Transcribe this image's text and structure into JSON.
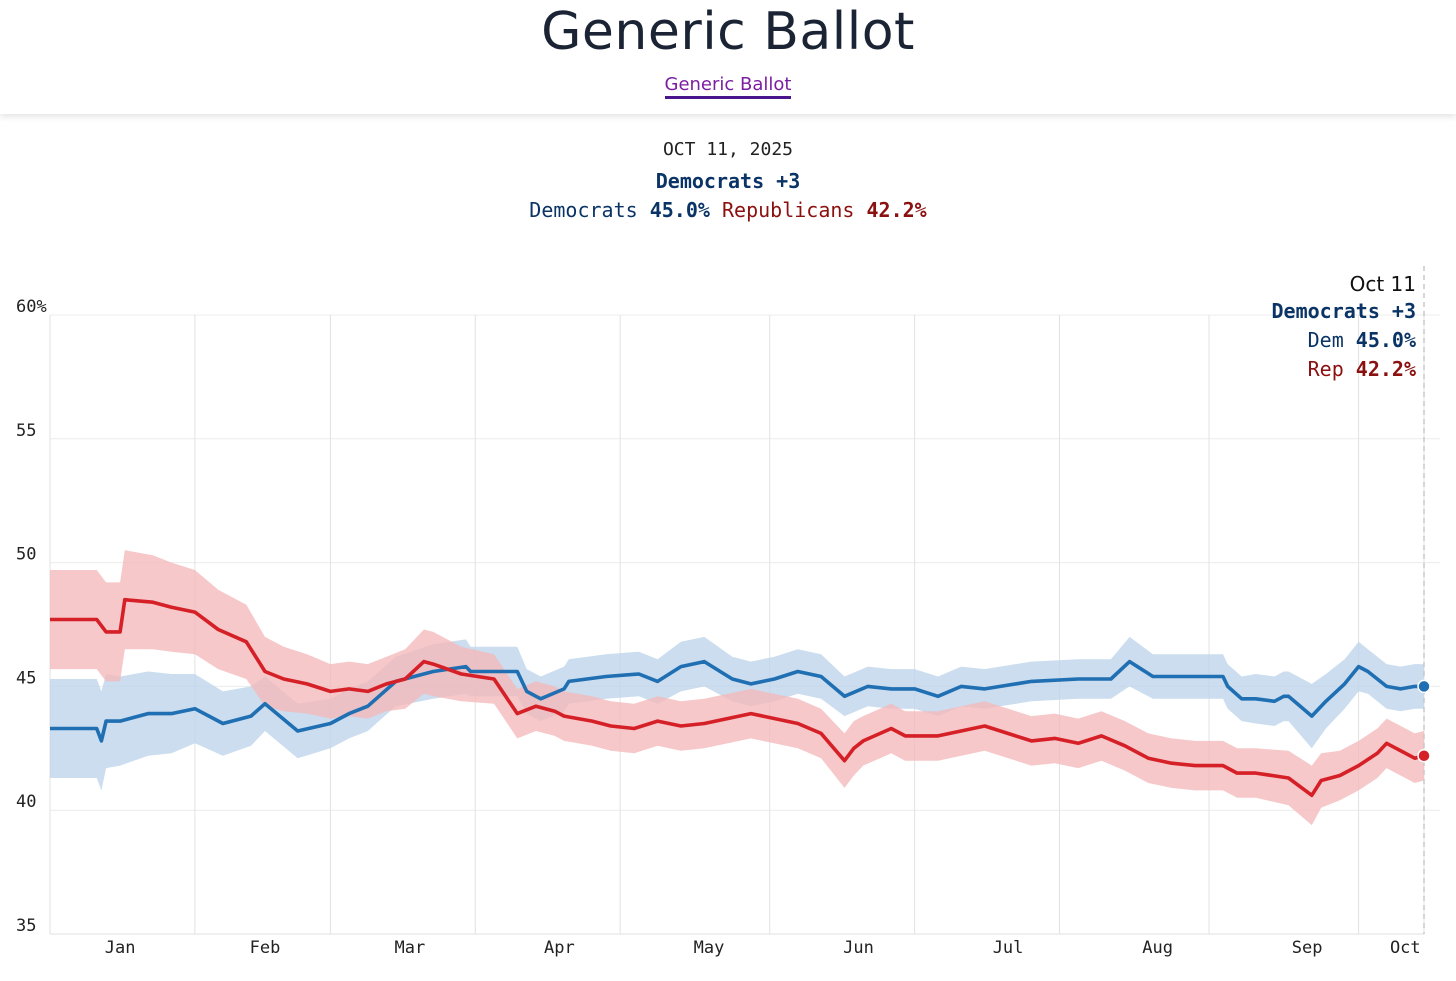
{
  "header": {
    "title": "Generic Ballot",
    "link": "Generic Ballot"
  },
  "summary": {
    "date": "OCT 11, 2025",
    "lead": "Democrats +3",
    "dem_label": "Democrats",
    "dem_value": "45.0%",
    "rep_label": "Republicans",
    "rep_value": "42.2%"
  },
  "tooltip": {
    "date": "Oct 11",
    "lead": "Democrats +3",
    "dem_label": "Dem",
    "dem_value": "45.0%",
    "rep_label": "Rep",
    "rep_value": "42.2%"
  },
  "colors": {
    "dem": "#1f6fb2",
    "dem_band": "#bcd4ea",
    "rep": "#d62027",
    "rep_band": "#f4b9ba",
    "dem_text": "#0b3466",
    "rep_text": "#8b1010"
  },
  "chart_data": {
    "type": "line",
    "title": "Generic Ballot",
    "x_unit": "days since Dec 21, 2024",
    "xlim": [
      0,
      294
    ],
    "ylim": [
      35,
      60
    ],
    "y_ticks": [
      35,
      40,
      45,
      50,
      55,
      60
    ],
    "y_tick_labels": [
      "35",
      "40",
      "45",
      "50",
      "55",
      "60%"
    ],
    "month_ticks": [
      {
        "label": "Jan",
        "x": 15
      },
      {
        "label": "Feb",
        "x": 46
      },
      {
        "label": "Mar",
        "x": 77
      },
      {
        "label": "Apr",
        "x": 109
      },
      {
        "label": "May",
        "x": 141
      },
      {
        "label": "Jun",
        "x": 173
      },
      {
        "label": "Jul",
        "x": 205
      },
      {
        "label": "Aug",
        "x": 237
      },
      {
        "label": "Sep",
        "x": 269
      },
      {
        "label": "Oct",
        "x": 290
      }
    ],
    "grid_x": [
      0,
      31,
      60,
      91,
      122,
      154,
      185,
      216,
      248,
      280,
      294
    ],
    "series": [
      {
        "name": "Democrats",
        "x": [
          0,
          10,
          11,
          12,
          15,
          21,
          26,
          31,
          37,
          43,
          46,
          53,
          60,
          64,
          68,
          74,
          82,
          89,
          90,
          95,
          100,
          102,
          105,
          110,
          111,
          119,
          126,
          130,
          135,
          140,
          146,
          150,
          155,
          160,
          165,
          170,
          175,
          180,
          185,
          190,
          195,
          200,
          210,
          220,
          227,
          231,
          236,
          241,
          247,
          251,
          252,
          255,
          258,
          262,
          264,
          265,
          270,
          273,
          277,
          280,
          282,
          286,
          289,
          292,
          294
        ],
        "y": [
          43.3,
          43.3,
          42.8,
          43.6,
          43.6,
          43.9,
          43.9,
          44.1,
          43.5,
          43.8,
          44.3,
          43.2,
          43.5,
          43.9,
          44.2,
          45.2,
          45.6,
          45.8,
          45.6,
          45.6,
          45.6,
          44.8,
          44.5,
          44.9,
          45.2,
          45.4,
          45.5,
          45.2,
          45.8,
          46.0,
          45.3,
          45.1,
          45.3,
          45.6,
          45.4,
          44.6,
          45.0,
          44.9,
          44.9,
          44.6,
          45.0,
          44.9,
          45.2,
          45.3,
          45.3,
          46.0,
          45.4,
          45.4,
          45.4,
          45.4,
          45.0,
          44.5,
          44.5,
          44.4,
          44.6,
          44.6,
          43.8,
          44.4,
          45.1,
          45.8,
          45.6,
          45.0,
          44.9,
          45.0,
          45.0
        ],
        "band": [
          2.0,
          2.0,
          2.0,
          1.9,
          1.8,
          1.7,
          1.6,
          1.4,
          1.3,
          1.2,
          1.1,
          1.1,
          1.0,
          1.0,
          1.0,
          1.0,
          1.1,
          1.1,
          1.0,
          1.0,
          1.0,
          0.9,
          0.9,
          0.9,
          0.9,
          0.9,
          0.9,
          0.9,
          1.0,
          1.0,
          0.9,
          0.9,
          0.9,
          0.9,
          0.9,
          0.8,
          0.8,
          0.8,
          0.8,
          0.8,
          0.8,
          0.8,
          0.8,
          0.8,
          0.8,
          1.0,
          0.9,
          0.9,
          0.9,
          0.9,
          0.9,
          0.9,
          1.0,
          1.0,
          1.0,
          1.0,
          1.3,
          1.1,
          1.0,
          1.0,
          0.9,
          0.9,
          0.9,
          0.9,
          0.9
        ]
      },
      {
        "name": "Republicans",
        "x": [
          0,
          10,
          12,
          15,
          16,
          22,
          26,
          31,
          36,
          42,
          46,
          50,
          55,
          60,
          64,
          68,
          72,
          76,
          80,
          82,
          88,
          95,
          100,
          104,
          108,
          110,
          116,
          120,
          125,
          130,
          135,
          140,
          150,
          160,
          165,
          170,
          172,
          174,
          180,
          183,
          190,
          200,
          210,
          215,
          220,
          225,
          230,
          235,
          240,
          245,
          251,
          254,
          258,
          265,
          270,
          272,
          276,
          280,
          284,
          286,
          288,
          292,
          294
        ],
        "y": [
          47.7,
          47.7,
          47.2,
          47.2,
          48.5,
          48.4,
          48.2,
          48.0,
          47.3,
          46.8,
          45.6,
          45.3,
          45.1,
          44.8,
          44.9,
          44.8,
          45.1,
          45.3,
          46.0,
          45.9,
          45.5,
          45.3,
          43.9,
          44.2,
          44.0,
          43.8,
          43.6,
          43.4,
          43.3,
          43.6,
          43.4,
          43.5,
          43.9,
          43.5,
          43.1,
          42.0,
          42.5,
          42.8,
          43.3,
          43.0,
          43.0,
          43.4,
          42.8,
          42.9,
          42.7,
          43.0,
          42.6,
          42.1,
          41.9,
          41.8,
          41.8,
          41.5,
          41.5,
          41.3,
          40.6,
          41.2,
          41.4,
          41.8,
          42.3,
          42.7,
          42.5,
          42.1,
          42.2
        ],
        "band": [
          2.0,
          2.0,
          2.0,
          2.0,
          2.0,
          1.9,
          1.8,
          1.7,
          1.6,
          1.5,
          1.4,
          1.3,
          1.2,
          1.1,
          1.1,
          1.1,
          1.1,
          1.2,
          1.3,
          1.3,
          1.1,
          1.0,
          1.0,
          1.0,
          1.0,
          1.0,
          1.0,
          1.0,
          1.0,
          1.0,
          1.0,
          1.0,
          1.0,
          1.0,
          1.0,
          1.1,
          1.1,
          1.0,
          1.0,
          1.0,
          1.0,
          1.0,
          1.0,
          1.0,
          1.0,
          1.0,
          1.0,
          1.0,
          1.0,
          1.0,
          1.0,
          1.0,
          1.0,
          1.1,
          1.2,
          1.1,
          1.0,
          1.0,
          1.0,
          1.0,
          1.0,
          1.0,
          1.0
        ]
      }
    ]
  }
}
